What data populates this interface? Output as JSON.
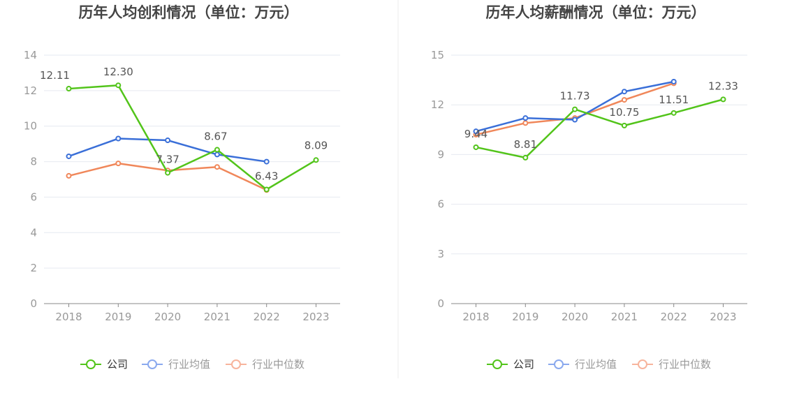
{
  "colors": {
    "company": "#52c41a",
    "industry_avg": "#3a6fd8",
    "industry_median": "#f0875a",
    "legend_avg": "#8aa9ee",
    "legend_median": "#f7b49c",
    "grid": "#e6e9f0",
    "axis": "#888888"
  },
  "chart_data": [
    {
      "type": "line",
      "title": "历年人均创利情况（单位：万元）",
      "categories": [
        "2018",
        "2019",
        "2020",
        "2021",
        "2022",
        "2023"
      ],
      "ylim": [
        0,
        14
      ],
      "yticks": [
        0,
        2,
        4,
        6,
        8,
        10,
        12,
        14
      ],
      "series": [
        {
          "key": "company",
          "name": "公司",
          "values": [
            12.11,
            12.3,
            7.37,
            8.67,
            6.43,
            8.09
          ],
          "labels": [
            "12.11",
            "12.30",
            "7.37",
            "8.67",
            "6.43",
            "8.09"
          ]
        },
        {
          "key": "industry_avg",
          "name": "行业均值",
          "values": [
            8.3,
            9.3,
            9.2,
            8.4,
            8.0,
            null
          ]
        },
        {
          "key": "industry_median",
          "name": "行业中位数",
          "values": [
            7.2,
            7.9,
            7.5,
            7.7,
            6.4,
            null
          ]
        }
      ]
    },
    {
      "type": "line",
      "title": "历年人均薪酬情况（单位：万元）",
      "categories": [
        "2018",
        "2019",
        "2020",
        "2021",
        "2022",
        "2023"
      ],
      "ylim": [
        0,
        15
      ],
      "yticks": [
        0,
        3,
        6,
        9,
        12,
        15
      ],
      "series": [
        {
          "key": "company",
          "name": "公司",
          "values": [
            9.44,
            8.81,
            11.73,
            10.75,
            11.51,
            12.33
          ],
          "labels": [
            "9.44",
            "8.81",
            "11.73",
            "10.75",
            "11.51",
            "12.33"
          ]
        },
        {
          "key": "industry_avg",
          "name": "行业均值",
          "values": [
            10.4,
            11.2,
            11.1,
            12.8,
            13.4,
            null
          ]
        },
        {
          "key": "industry_median",
          "name": "行业中位数",
          "values": [
            10.2,
            10.9,
            11.2,
            12.3,
            13.3,
            null
          ]
        }
      ]
    }
  ],
  "legend": [
    {
      "key": "company",
      "label": "公司"
    },
    {
      "key": "industry_avg",
      "label": "行业均值"
    },
    {
      "key": "industry_median",
      "label": "行业中位数"
    }
  ]
}
